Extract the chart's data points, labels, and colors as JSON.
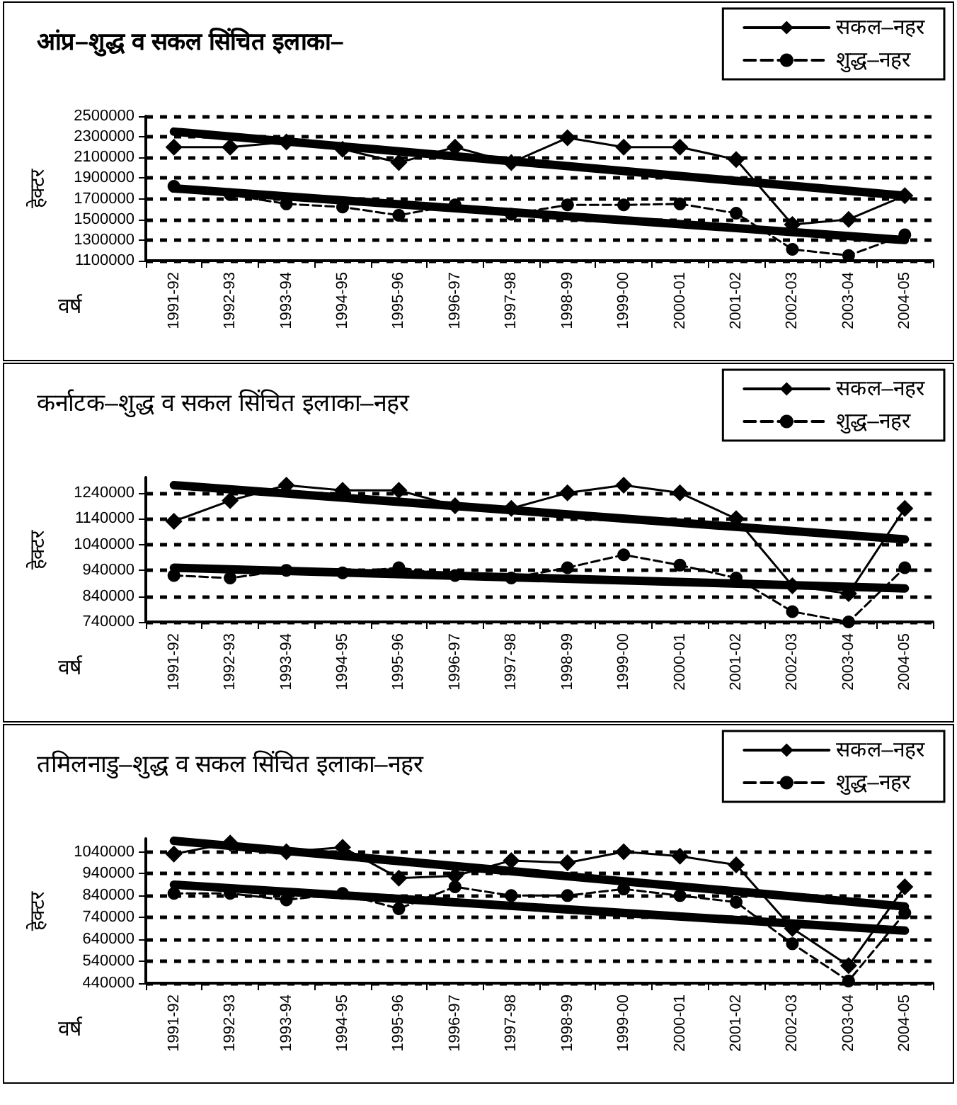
{
  "chart_data": [
    {
      "type": "line",
      "title": "आंप्र–शुद्ध व सकल सिंचित इलाका–",
      "xlabel": "वर्ष",
      "ylabel": "हेक्टर",
      "categories": [
        "1991-92",
        "1992-93",
        "1993-94",
        "1994-95",
        "1995-96",
        "1996-97",
        "1997-98",
        "1998-99",
        "1999-00",
        "2000-01",
        "2001-02",
        "2002-03",
        "2003-04",
        "2004-05"
      ],
      "ylim": [
        1100000,
        2500000
      ],
      "yticks": [
        1100000,
        1300000,
        1500000,
        1700000,
        1900000,
        2100000,
        2300000,
        2500000
      ],
      "grid": "y",
      "legend": "top right",
      "series": [
        {
          "name": "सकल–नहर",
          "color": "#000000",
          "marker": "diamond",
          "line_style": "solid",
          "values": [
            2200000,
            2200000,
            2250000,
            2180000,
            2050000,
            2200000,
            2050000,
            2290000,
            2200000,
            2200000,
            2080000,
            1450000,
            1500000,
            1730000
          ]
        },
        {
          "name": "शुद्ध–नहर",
          "color": "#000000",
          "marker": "circle",
          "line_style": "dashed",
          "values": [
            1820000,
            1740000,
            1650000,
            1620000,
            1540000,
            1640000,
            1550000,
            1640000,
            1640000,
            1650000,
            1560000,
            1210000,
            1150000,
            1350000
          ]
        },
        {
          "color": "#000000",
          "marker": "none",
          "line_style": "solid",
          "values": [
            2350000,
            null,
            null,
            null,
            null,
            null,
            null,
            null,
            null,
            null,
            null,
            null,
            null,
            1730000
          ]
        },
        {
          "color": "#000000",
          "marker": "none",
          "line_style": "solid",
          "values": [
            1800000,
            null,
            null,
            null,
            null,
            null,
            null,
            null,
            null,
            null,
            null,
            null,
            null,
            1300000
          ]
        }
      ]
    },
    {
      "type": "line",
      "title": "कर्नाटक–शुद्ध व सकल सिंचित इलाका–नहर",
      "xlabel": "वर्ष",
      "ylabel": "हेक्टर",
      "categories": [
        "1991-92",
        "1992-93",
        "1993-94",
        "1994-95",
        "1995-96",
        "1996-97",
        "1997-98",
        "1998-99",
        "1999-00",
        "2000-01",
        "2001-02",
        "2002-03",
        "2003-04",
        "2004-05"
      ],
      "ylim": [
        740000,
        1300000
      ],
      "yticks": [
        740000,
        840000,
        940000,
        1040000,
        1140000,
        1240000
      ],
      "grid": "y",
      "legend": "top right",
      "series": [
        {
          "name": "सकल–नहर",
          "color": "#000000",
          "marker": "diamond",
          "line_style": "solid",
          "values": [
            1130000,
            1210000,
            1270000,
            1250000,
            1250000,
            1190000,
            1180000,
            1240000,
            1270000,
            1240000,
            1140000,
            880000,
            850000,
            1180000
          ]
        },
        {
          "name": "शुद्ध–नहर",
          "color": "#000000",
          "marker": "circle",
          "line_style": "dashed",
          "values": [
            920000,
            910000,
            940000,
            930000,
            950000,
            920000,
            910000,
            950000,
            1000000,
            960000,
            910000,
            780000,
            740000,
            950000
          ]
        },
        {
          "color": "#000000",
          "marker": "none",
          "line_style": "solid",
          "values": [
            1270000,
            null,
            null,
            null,
            null,
            null,
            null,
            null,
            null,
            null,
            null,
            null,
            null,
            1060000
          ]
        },
        {
          "color": "#000000",
          "marker": "none",
          "line_style": "solid",
          "values": [
            950000,
            null,
            null,
            null,
            null,
            null,
            null,
            null,
            null,
            null,
            null,
            null,
            null,
            870000
          ]
        }
      ]
    },
    {
      "type": "line",
      "title": "तमिलनाडु–शुद्ध व सकल सिंचित इलाका–नहर",
      "xlabel": "वर्ष",
      "ylabel": "हेक्टर",
      "categories": [
        "1991-92",
        "1992-93",
        "1993-94",
        "1994-95",
        "1995-96",
        "1996-97",
        "1997-98",
        "1998-99",
        "1999-00",
        "2000-01",
        "2001-02",
        "2002-03",
        "2003-04",
        "2004-05"
      ],
      "ylim": [
        440000,
        1100000
      ],
      "yticks": [
        440000,
        540000,
        640000,
        740000,
        840000,
        940000,
        1040000
      ],
      "grid": "y",
      "legend": "top right",
      "series": [
        {
          "name": "सकल–नहर",
          "color": "#000000",
          "marker": "diamond",
          "line_style": "solid",
          "values": [
            1030000,
            1080000,
            1040000,
            1060000,
            920000,
            930000,
            1000000,
            990000,
            1040000,
            1020000,
            980000,
            690000,
            520000,
            880000
          ]
        },
        {
          "name": "शुद्ध–नहर",
          "color": "#000000",
          "marker": "circle",
          "line_style": "dashed",
          "values": [
            850000,
            850000,
            820000,
            850000,
            780000,
            880000,
            840000,
            840000,
            870000,
            840000,
            810000,
            620000,
            450000,
            760000
          ]
        },
        {
          "color": "#000000",
          "marker": "none",
          "line_style": "solid",
          "values": [
            1090000,
            null,
            null,
            null,
            null,
            null,
            null,
            null,
            null,
            null,
            null,
            null,
            null,
            790000
          ]
        },
        {
          "color": "#000000",
          "marker": "none",
          "line_style": "solid",
          "values": [
            890000,
            null,
            null,
            null,
            null,
            null,
            null,
            null,
            null,
            null,
            null,
            null,
            null,
            680000
          ]
        }
      ]
    }
  ]
}
